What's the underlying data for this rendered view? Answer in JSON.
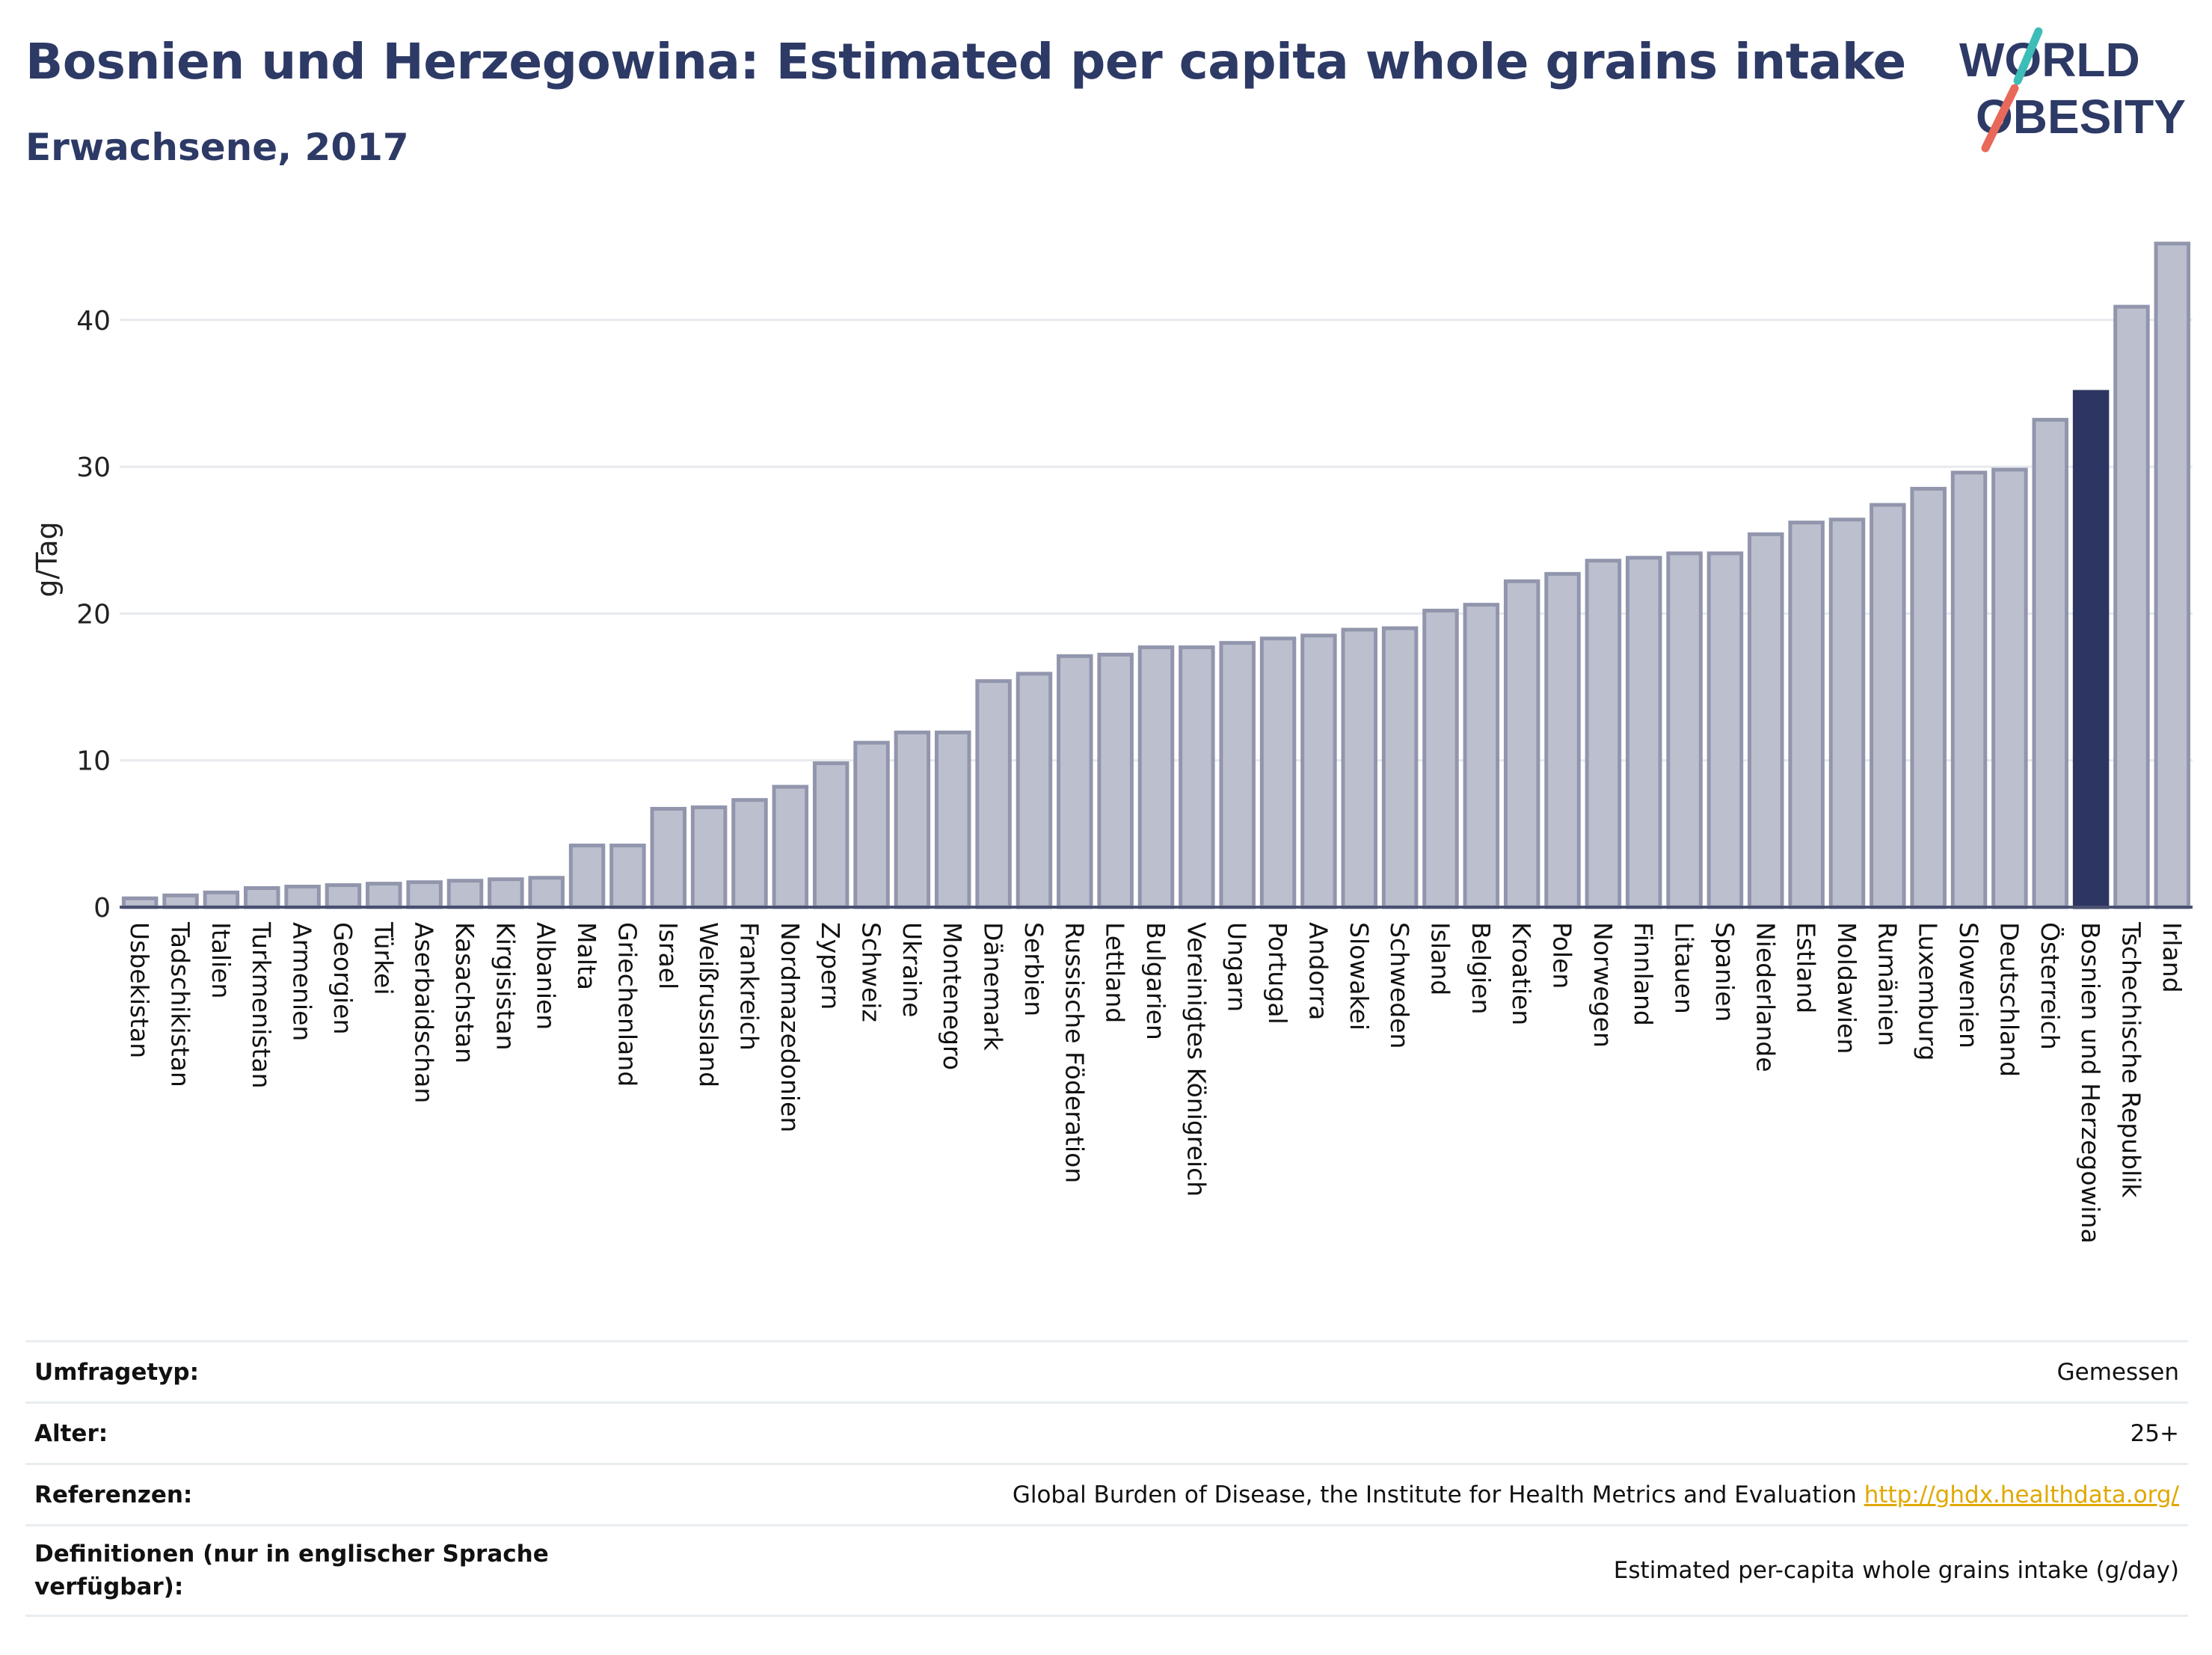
{
  "header": {
    "title": "Bosnien und Herzegowina: Estimated per capita whole grains intake",
    "subtitle": "Erwachsene, 2017"
  },
  "logo": {
    "line1": "WORLD",
    "line2": "OBESITY"
  },
  "colors": {
    "title": "#2d3a66",
    "bar": "#bcc0ce",
    "bar_stroke": "#9196ad",
    "bar_highlight": "#2d3662",
    "grid": "#e6eaee",
    "logo_teal": "#3dbdb7",
    "logo_coral": "#e8685a"
  },
  "chart_data": {
    "type": "bar",
    "ylabel": "g/Tag",
    "ylim": [
      0,
      46
    ],
    "yticks": [
      0,
      10,
      20,
      30,
      40
    ],
    "grid": true,
    "highlight": "Bosnien und Herzegowina",
    "categories": [
      "Usbekistan",
      "Tadschikistan",
      "Italien",
      "Turkmenistan",
      "Armenien",
      "Georgien",
      "Türkei",
      "Aserbaidschan",
      "Kasachstan",
      "Kirgisistan",
      "Albanien",
      "Malta",
      "Griechenland",
      "Israel",
      "Weißrussland",
      "Frankreich",
      "Nordmazedonien",
      "Zypern",
      "Schweiz",
      "Ukraine",
      "Montenegro",
      "Dänemark",
      "Serbien",
      "Russische Föderation",
      "Lettland",
      "Bulgarien",
      "Vereinigtes Königreich",
      "Ungarn",
      "Portugal",
      "Andorra",
      "Slowakei",
      "Schweden",
      "Island",
      "Belgien",
      "Kroatien",
      "Polen",
      "Norwegen",
      "Finnland",
      "Litauen",
      "Spanien",
      "Niederlande",
      "Estland",
      "Moldawien",
      "Rumänien",
      "Luxemburg",
      "Slowenien",
      "Deutschland",
      "Österreich",
      "Bosnien und Herzegowina",
      "Tschechische Republik",
      "Irland"
    ],
    "values": [
      0.6,
      0.8,
      1.0,
      1.3,
      1.4,
      1.5,
      1.6,
      1.7,
      1.8,
      1.9,
      2.0,
      4.2,
      4.2,
      6.7,
      6.8,
      7.3,
      8.2,
      9.8,
      11.2,
      11.9,
      11.9,
      15.4,
      15.9,
      17.1,
      17.2,
      17.7,
      17.7,
      18.0,
      18.3,
      18.5,
      18.9,
      19.0,
      20.2,
      20.6,
      22.2,
      22.7,
      23.6,
      23.8,
      24.1,
      24.1,
      25.4,
      26.2,
      26.4,
      27.4,
      28.5,
      29.6,
      29.8,
      33.2,
      35.1,
      40.9,
      45.2
    ]
  },
  "info_table": [
    {
      "label": "Umfragetyp:",
      "value": "Gemessen",
      "link": ""
    },
    {
      "label": "Alter:",
      "value": "25+",
      "link": ""
    },
    {
      "label": "Referenzen:",
      "value": "Global Burden of Disease, the Institute for Health Metrics and Evaluation ",
      "link": "http://ghdx.healthdata.org/"
    },
    {
      "label": "Definitionen (nur in englischer Sprache verfügbar):",
      "value": "Estimated per-capita whole grains intake (g/day)",
      "link": ""
    }
  ]
}
